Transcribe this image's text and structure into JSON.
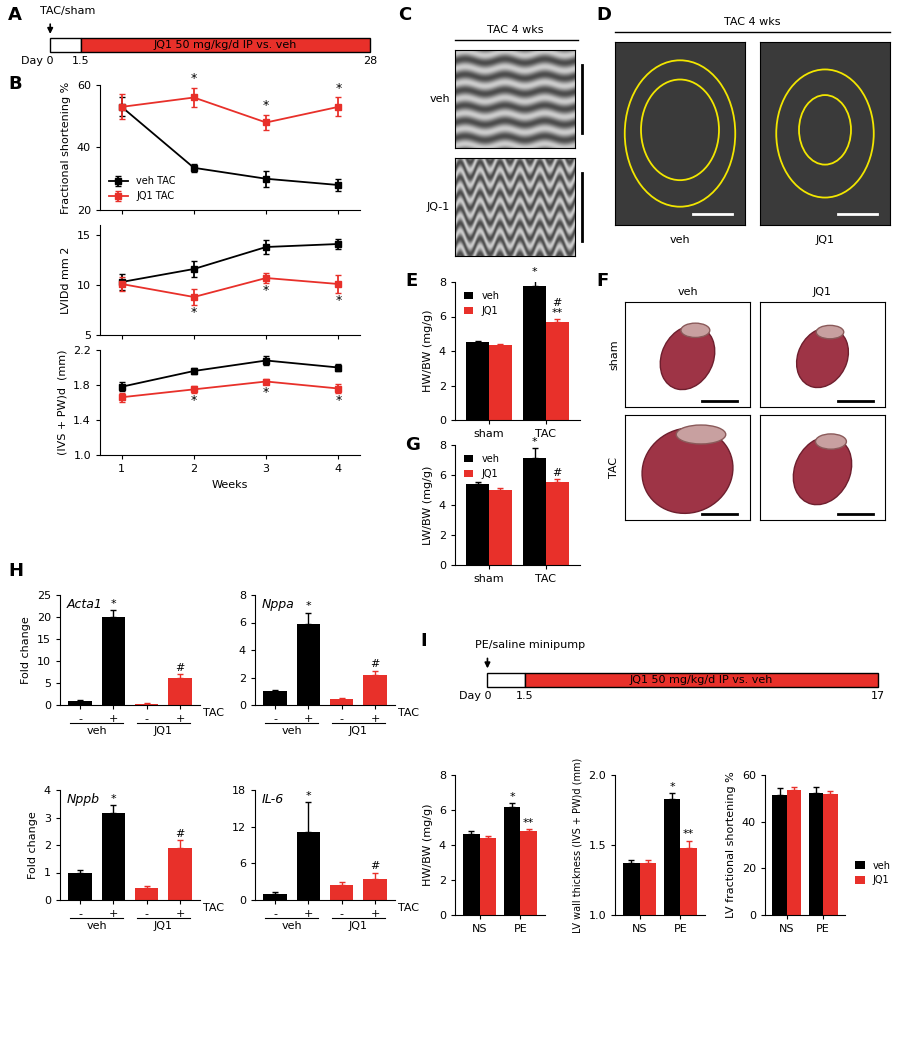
{
  "chart_data": [
    {
      "type": "timeline",
      "panel": "A",
      "event": "TAC/sham",
      "treatment": "JQ1 50 mg/kg/d IP vs. veh",
      "color": "#e8302a",
      "labels": [
        "Day 0",
        "1.5",
        "28"
      ]
    },
    {
      "type": "line",
      "panel": "B",
      "ylabel": "Fractional shortening %",
      "x": [
        1,
        2,
        3,
        4
      ],
      "xlim": [
        0.7,
        4.3
      ],
      "xticks": [
        1,
        2,
        3,
        4
      ],
      "ylim": [
        20,
        60
      ],
      "yticks": [
        20,
        40,
        60
      ],
      "tick_labels": "y",
      "legend": "lower left",
      "series": [
        {
          "name": "veh TAC",
          "color": "#000000",
          "marker": "square",
          "values": [
            53,
            33.5,
            30,
            28
          ],
          "errors": [
            3,
            1.2,
            2.5,
            1.8
          ]
        },
        {
          "name": "JQ1 TAC",
          "color": "#e8302a",
          "marker": "square",
          "values": [
            53,
            56,
            48,
            53
          ],
          "errors": [
            4,
            3,
            2.5,
            3
          ],
          "annotations": [
            null,
            "*",
            "*",
            "*"
          ]
        }
      ]
    },
    {
      "type": "line",
      "ylabel": "LVIDd mm 2",
      "x": [
        1,
        2,
        3,
        4
      ],
      "xlim": [
        0.7,
        4.3
      ],
      "xticks": [
        1,
        2,
        3,
        4
      ],
      "ylim": [
        5,
        16
      ],
      "yticks": [
        5,
        10,
        15
      ],
      "tick_labels": "y",
      "series": [
        {
          "name": "veh TAC",
          "color": "#000000",
          "marker": "square",
          "values": [
            10.3,
            11.6,
            13.8,
            14.1
          ],
          "errors": [
            0.8,
            0.8,
            0.7,
            0.5
          ]
        },
        {
          "name": "JQ1 TAC",
          "color": "#e8302a",
          "marker": "square",
          "values": [
            10.1,
            8.8,
            10.7,
            10.1
          ],
          "errors": [
            0.7,
            0.8,
            0.5,
            0.9
          ],
          "annotations": [
            null,
            "*",
            "*",
            "*"
          ]
        }
      ]
    },
    {
      "type": "line",
      "ylabel": "(IVS + PW)d  (mm)",
      "xlabel": "Weeks",
      "x": [
        1,
        2,
        3,
        4
      ],
      "xlim": [
        0.7,
        4.3
      ],
      "xticks": [
        1,
        2,
        3,
        4
      ],
      "ylim": [
        1.0,
        2.2
      ],
      "yticks": [
        1.0,
        1.4,
        1.8,
        2.2
      ],
      "series": [
        {
          "name": "veh TAC",
          "color": "#000000",
          "marker": "square",
          "values": [
            1.78,
            1.96,
            2.08,
            2.0
          ],
          "errors": [
            0.05,
            0.03,
            0.05,
            0.04
          ]
        },
        {
          "name": "JQ1 TAC",
          "color": "#e8302a",
          "marker": "square",
          "values": [
            1.66,
            1.75,
            1.84,
            1.76
          ],
          "errors": [
            0.05,
            0.04,
            0.03,
            0.05
          ],
          "annotations": [
            null,
            "*",
            "*",
            "*"
          ]
        }
      ]
    },
    {
      "type": "image",
      "panel": "C",
      "title": "TAC 4 wks",
      "labels": [
        "veh",
        "JQ-1"
      ]
    },
    {
      "type": "image",
      "panel": "D",
      "title": "TAC 4 wks",
      "labels": [
        "veh",
        "JQ1"
      ]
    },
    {
      "type": "bar",
      "panel": "E",
      "ylabel": "HW/BW (mg/g)",
      "categories": [
        "sham",
        "TAC"
      ],
      "ylim": [
        0,
        8
      ],
      "yticks": [
        0,
        2,
        4,
        6,
        8
      ],
      "legend": "upper left",
      "series": [
        {
          "name": "veh",
          "color": "#000000",
          "values": [
            4.55,
            7.75
          ],
          "errors": [
            0.05,
            0.45
          ],
          "annotations": [
            null,
            "*"
          ]
        },
        {
          "name": "JQ1",
          "color": "#e8302a",
          "values": [
            4.35,
            5.7
          ],
          "errors": [
            0.05,
            0.15
          ],
          "annotations": [
            null,
            "#\n**"
          ]
        }
      ]
    },
    {
      "type": "image",
      "panel": "F",
      "columns": [
        "veh",
        "JQ1"
      ],
      "rows": [
        "sham",
        "TAC"
      ]
    },
    {
      "type": "bar",
      "panel": "G",
      "ylabel": "LW/BW (mg/g)",
      "categories": [
        "sham",
        "TAC"
      ],
      "ylim": [
        0,
        8
      ],
      "yticks": [
        0,
        2,
        4,
        6,
        8
      ],
      "legend": "upper left",
      "series": [
        {
          "name": "veh",
          "color": "#000000",
          "values": [
            5.4,
            7.1
          ],
          "errors": [
            0.1,
            0.7
          ],
          "annotations": [
            null,
            "*"
          ]
        },
        {
          "name": "JQ1",
          "color": "#e8302a",
          "values": [
            5.0,
            5.5
          ],
          "errors": [
            0.1,
            0.2
          ],
          "annotations": [
            null,
            "#"
          ]
        }
      ]
    },
    {
      "type": "bar",
      "panel": "H",
      "title": "Acta1",
      "ylabel": "Fold change",
      "xlabel": "TAC",
      "categories": [
        "-",
        "+",
        "-",
        "+"
      ],
      "groups": [
        "veh",
        "JQ1"
      ],
      "colors": [
        "#000000",
        "#000000",
        "#e8302a",
        "#e8302a"
      ],
      "values": [
        1,
        20,
        0.3,
        6.2
      ],
      "errors": [
        0.2,
        1.6,
        0.05,
        0.8
      ],
      "annotations": [
        null,
        "*",
        null,
        "#"
      ],
      "ylim": [
        0,
        25
      ],
      "yticks": [
        0,
        5,
        10,
        15,
        20,
        25
      ]
    },
    {
      "type": "bar",
      "title": "Nppa",
      "xlabel": "TAC",
      "categories": [
        "-",
        "+",
        "-",
        "+"
      ],
      "groups": [
        "veh",
        "JQ1"
      ],
      "colors": [
        "#000000",
        "#000000",
        "#e8302a",
        "#e8302a"
      ],
      "values": [
        1,
        5.9,
        0.45,
        2.2
      ],
      "errors": [
        0.1,
        0.8,
        0.05,
        0.3
      ],
      "annotations": [
        null,
        "*",
        null,
        "#"
      ],
      "ylim": [
        0,
        8
      ],
      "yticks": [
        0,
        2,
        4,
        6,
        8
      ]
    },
    {
      "type": "bar",
      "title": "Nppb",
      "ylabel": "Fold change",
      "xlabel": "TAC",
      "categories": [
        "-",
        "+",
        "-",
        "+"
      ],
      "groups": [
        "veh",
        "JQ1"
      ],
      "colors": [
        "#000000",
        "#000000",
        "#e8302a",
        "#e8302a"
      ],
      "values": [
        1,
        3.15,
        0.45,
        1.88
      ],
      "errors": [
        0.08,
        0.3,
        0.05,
        0.3
      ],
      "annotations": [
        null,
        "*",
        null,
        "#"
      ],
      "ylim": [
        0,
        4
      ],
      "yticks": [
        0,
        1,
        2,
        3,
        4
      ]
    },
    {
      "type": "bar",
      "title": "IL-6",
      "xlabel": "TAC",
      "categories": [
        "-",
        "+",
        "-",
        "+"
      ],
      "groups": [
        "veh",
        "JQ1"
      ],
      "colors": [
        "#000000",
        "#000000",
        "#e8302a",
        "#e8302a"
      ],
      "values": [
        1,
        11.2,
        2.5,
        3.5
      ],
      "errors": [
        0.3,
        4.8,
        0.4,
        1.0
      ],
      "annotations": [
        null,
        "*",
        null,
        "#"
      ],
      "ylim": [
        0,
        18
      ],
      "yticks": [
        0,
        6,
        12,
        18
      ]
    },
    {
      "type": "timeline",
      "panel": "I",
      "event": "PE/saline minipump",
      "treatment": "JQ1 50 mg/kg/d IP vs. veh",
      "color": "#e8302a",
      "labels": [
        "Day 0",
        "1.5",
        "17"
      ]
    },
    {
      "type": "bar",
      "ylabel": "HW/BW (mg/g)",
      "categories": [
        "NS",
        "PE"
      ],
      "ylim": [
        0,
        8
      ],
      "yticks": [
        0,
        2,
        4,
        6,
        8
      ],
      "series": [
        {
          "name": "veh",
          "color": "#000000",
          "values": [
            4.65,
            6.2
          ],
          "errors": [
            0.15,
            0.2
          ],
          "annotations": [
            null,
            "*"
          ]
        },
        {
          "name": "JQ1",
          "color": "#e8302a",
          "values": [
            4.4,
            4.8
          ],
          "errors": [
            0.1,
            0.1
          ],
          "annotations": [
            null,
            "**"
          ]
        }
      ]
    },
    {
      "type": "bar",
      "ylabel": "LV wall thickness (IVS + PW)d (mm)",
      "categories": [
        "NS",
        "PE"
      ],
      "ylim": [
        1.0,
        2.0
      ],
      "yticks": [
        1.0,
        1.5,
        2.0
      ],
      "series": [
        {
          "name": "veh",
          "color": "#000000",
          "values": [
            1.37,
            1.83
          ],
          "errors": [
            0.02,
            0.04
          ],
          "annotations": [
            null,
            "*"
          ]
        },
        {
          "name": "JQ1",
          "color": "#e8302a",
          "values": [
            1.37,
            1.48
          ],
          "errors": [
            0.02,
            0.05
          ],
          "annotations": [
            null,
            "**"
          ]
        }
      ]
    },
    {
      "type": "bar",
      "ylabel": "LV fractional shortening %",
      "categories": [
        "NS",
        "PE"
      ],
      "ylim": [
        0,
        60
      ],
      "yticks": [
        0,
        20,
        40,
        60
      ],
      "legend": "right",
      "series": [
        {
          "name": "veh",
          "color": "#000000",
          "values": [
            51.5,
            52.5
          ],
          "errors": [
            3,
            2.5
          ]
        },
        {
          "name": "JQ1",
          "color": "#e8302a",
          "values": [
            53.5,
            52
          ],
          "errors": [
            1.5,
            1
          ]
        }
      ]
    }
  ]
}
